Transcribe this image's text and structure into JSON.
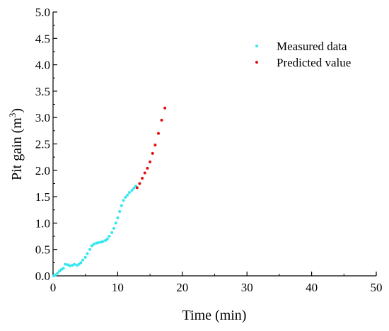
{
  "chart_data": {
    "type": "scatter",
    "title": "",
    "xlabel": "Time (min)",
    "ylabel_main": "Pit gain (m",
    "ylabel_sup": "3",
    "ylabel_close": ")",
    "xlim": [
      0,
      50
    ],
    "ylim": [
      0,
      5
    ],
    "xticks": [
      0,
      10,
      20,
      30,
      40,
      50
    ],
    "yticks": [
      0,
      0.5,
      1,
      1.5,
      2,
      2.5,
      3,
      3.5,
      4,
      4.5,
      5
    ],
    "xtick_labels": [
      "0",
      "10",
      "20",
      "30",
      "40",
      "50"
    ],
    "ytick_labels": [
      "0.0",
      "0.5",
      "1.0",
      "1.5",
      "2.0",
      "2.5",
      "3.0",
      "3.5",
      "4.0",
      "4.5",
      "5.0"
    ],
    "grid": false,
    "legend_position": "top-right",
    "series": [
      {
        "name": "Measured data",
        "color": "#33e6f0",
        "x": [
          0.1,
          0.4,
          0.7,
          1.0,
          1.3,
          1.6,
          1.9,
          2.3,
          2.6,
          3.0,
          3.3,
          3.7,
          4.0,
          4.3,
          4.6,
          5.0,
          5.3,
          5.7,
          6.0,
          6.3,
          6.7,
          7.0,
          7.4,
          7.7,
          8.1,
          8.4,
          8.7,
          9.1,
          9.4,
          9.7,
          10.0,
          10.3,
          10.6,
          10.9,
          11.2,
          11.5,
          11.8,
          12.2,
          12.5,
          12.8
        ],
        "y": [
          0.0,
          0.02,
          0.05,
          0.09,
          0.12,
          0.14,
          0.22,
          0.21,
          0.19,
          0.2,
          0.22,
          0.2,
          0.22,
          0.25,
          0.3,
          0.35,
          0.42,
          0.5,
          0.57,
          0.6,
          0.62,
          0.63,
          0.64,
          0.65,
          0.67,
          0.7,
          0.75,
          0.82,
          0.9,
          1.0,
          1.1,
          1.22,
          1.33,
          1.43,
          1.49,
          1.53,
          1.58,
          1.62,
          1.66,
          1.7
        ]
      },
      {
        "name": "Predicted value",
        "color": "#e01010",
        "x": [
          13.0,
          13.4,
          13.8,
          14.2,
          14.6,
          15.0,
          15.4,
          15.8,
          16.3,
          16.8,
          17.3
        ],
        "y": [
          1.67,
          1.75,
          1.85,
          1.95,
          2.04,
          2.16,
          2.32,
          2.48,
          2.7,
          2.95,
          3.18
        ]
      }
    ]
  }
}
